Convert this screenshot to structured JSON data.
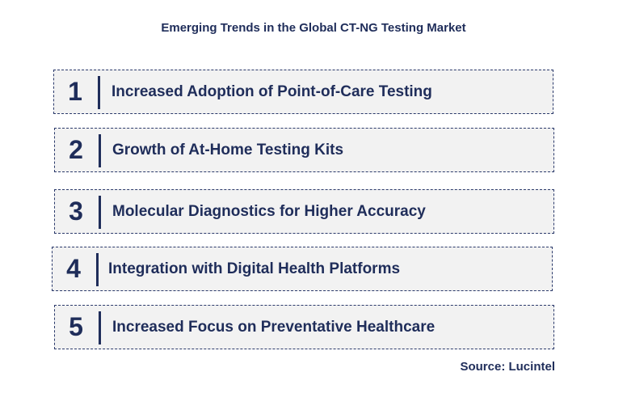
{
  "title": "Emerging Trends in the Global CT-NG Testing Market",
  "trends": [
    {
      "number": "1",
      "label": "Increased Adoption of Point-of-Care Testing"
    },
    {
      "number": "2",
      "label": "Growth of At-Home Testing Kits"
    },
    {
      "number": "3",
      "label": "Molecular Diagnostics for Higher Accuracy"
    },
    {
      "number": "4",
      "label": "Integration with Digital Health Platforms"
    },
    {
      "number": "5",
      "label": "Increased Focus on Preventative Healthcare"
    }
  ],
  "source": "Source: Lucintel",
  "colors": {
    "text": "#1f2d5a",
    "box_fill": "#f2f2f2",
    "box_border": "#2b3a6b"
  }
}
